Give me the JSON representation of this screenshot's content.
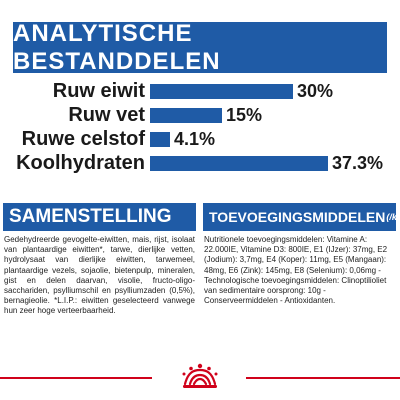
{
  "header": {
    "title": "ANALYTISCHE BESTANDDELEN"
  },
  "chart_data": {
    "type": "bar",
    "orientation": "horizontal",
    "categories": [
      "Ruw eiwit",
      "Ruw vet",
      "Ruwe celstof",
      "Koolhydraten"
    ],
    "values": [
      30,
      15,
      4.1,
      37.3
    ],
    "value_labels": [
      "30%",
      "15%",
      "4.1%",
      "37.3%"
    ],
    "xlim": [
      0,
      37.3
    ],
    "bar_color": "#1f5ba6",
    "grid": false,
    "legend": "none"
  },
  "composition": {
    "heading": "SAMENSTELLING",
    "text": "Gedehydreerde gevogelte-eiwitten, mais, rijst, isolaat van plantaardige eiwitten*, tarwe, dierlijke vetten, hydrolysaat van dierlijke eiwitten, tarwemeel, plantaardige vezels, sojaolie, bietenpulp, mineralen, gist en delen daarvan, visolie, fructo-oligo-sacchariden, psylliumschil en psylliumzaden (0,5%), bernagieolie. *L.I.P.: eiwitten geselecteerd vanwege hun zeer hoge verteerbaarheid."
  },
  "additives": {
    "heading": "TOEVOEGINGSMIDDELEN",
    "unit": "(/kg)",
    "text": "Nutritionele toevoegingsmiddelen: Vitamine A: 22.000IE, Vitamine D3: 800IE, E1 (IJzer): 37mg, E2 (Jodium): 3,7mg, E4 (Koper): 11mg, E5 (Mangaan): 48mg, E6 (Zink): 145mg, E8 (Selenium): 0,06mg - Technologische toevoegingsmiddelen: Clinoptilioliet van sedimentaire oorsprong: 10g - Conserveermiddelen - Antioxidanten."
  },
  "brand": {
    "logo": "royal-canin-crown-logo",
    "accent_color": "#d0021b"
  }
}
